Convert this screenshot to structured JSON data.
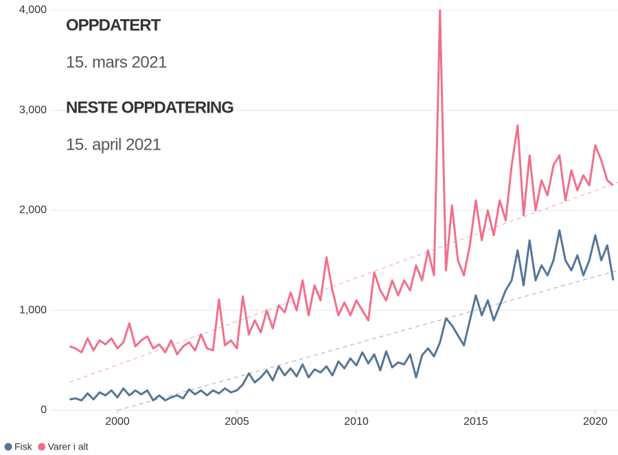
{
  "chart_data": {
    "type": "line",
    "annotations": [
      "OPPDATERT",
      "15. mars 2021",
      "NESTE OPPDATERING",
      "15. april 2021"
    ],
    "x": [
      1998,
      1998.25,
      1998.5,
      1998.75,
      1999,
      1999.25,
      1999.5,
      1999.75,
      2000,
      2000.25,
      2000.5,
      2000.75,
      2001,
      2001.25,
      2001.5,
      2001.75,
      2002,
      2002.25,
      2002.5,
      2002.75,
      2003,
      2003.25,
      2003.5,
      2003.75,
      2004,
      2004.25,
      2004.5,
      2004.75,
      2005,
      2005.25,
      2005.5,
      2005.75,
      2006,
      2006.25,
      2006.5,
      2006.75,
      2007,
      2007.25,
      2007.5,
      2007.75,
      2008,
      2008.25,
      2008.5,
      2008.75,
      2009,
      2009.25,
      2009.5,
      2009.75,
      2010,
      2010.25,
      2010.5,
      2010.75,
      2011,
      2011.25,
      2011.5,
      2011.75,
      2012,
      2012.25,
      2012.5,
      2012.75,
      2013,
      2013.25,
      2013.5,
      2013.75,
      2014,
      2014.25,
      2014.5,
      2014.75,
      2015,
      2015.25,
      2015.5,
      2015.75,
      2016,
      2016.25,
      2016.5,
      2016.75,
      2017,
      2017.25,
      2017.5,
      2017.75,
      2018,
      2018.25,
      2018.5,
      2018.75,
      2019,
      2019.25,
      2019.5,
      2019.75,
      2020,
      2020.25,
      2020.5,
      2020.75
    ],
    "series": [
      {
        "name": "Fisk",
        "color": "#557596",
        "values": [
          110,
          120,
          100,
          170,
          110,
          180,
          150,
          200,
          130,
          220,
          150,
          200,
          160,
          200,
          100,
          150,
          100,
          130,
          150,
          120,
          210,
          160,
          200,
          150,
          200,
          170,
          220,
          180,
          200,
          260,
          370,
          280,
          330,
          400,
          300,
          440,
          350,
          420,
          340,
          460,
          330,
          410,
          380,
          440,
          350,
          490,
          420,
          520,
          450,
          580,
          470,
          560,
          400,
          590,
          430,
          480,
          460,
          560,
          330,
          550,
          620,
          540,
          680,
          920,
          850,
          750,
          650,
          900,
          1150,
          950,
          1100,
          900,
          1050,
          1200,
          1300,
          1600,
          1250,
          1700,
          1300,
          1450,
          1350,
          1500,
          1800,
          1500,
          1400,
          1550,
          1350,
          1500,
          1750,
          1500,
          1650,
          1300
        ]
      },
      {
        "name": "Varer i alt",
        "color": "#f0708a",
        "values": [
          640,
          620,
          580,
          720,
          600,
          700,
          660,
          720,
          620,
          680,
          870,
          640,
          700,
          740,
          620,
          660,
          580,
          700,
          560,
          640,
          680,
          600,
          760,
          620,
          600,
          1110,
          650,
          700,
          620,
          1140,
          760,
          900,
          780,
          1000,
          820,
          1050,
          980,
          1180,
          1000,
          1300,
          950,
          1250,
          1100,
          1530,
          1200,
          950,
          1080,
          950,
          1100,
          1000,
          900,
          1380,
          1200,
          1100,
          1300,
          1150,
          1300,
          1200,
          1450,
          1300,
          1600,
          1350,
          4000,
          1400,
          2050,
          1500,
          1350,
          1650,
          2100,
          1700,
          2000,
          1750,
          2100,
          1900,
          2450,
          2850,
          1950,
          2550,
          2000,
          2300,
          2150,
          2450,
          2550,
          2100,
          2400,
          2200,
          2350,
          2250,
          2650,
          2500,
          2300,
          2250
        ]
      }
    ],
    "trendlines": [
      {
        "color": "#b9c4d3",
        "x": [
          2000,
          2020.95
        ],
        "values": [
          0,
          1400
        ]
      },
      {
        "color": "#f6bccb",
        "x": [
          1998,
          2020.95
        ],
        "values": [
          280,
          2280
        ]
      }
    ],
    "xlim": [
      1997.5,
      2020.95
    ],
    "xticks": [
      2000,
      2005,
      2010,
      2015,
      2020
    ],
    "ylim": [
      0,
      4000
    ],
    "yticks": [
      0,
      {
        "value": 1000,
        "label": "1,000"
      },
      {
        "value": 2000,
        "label": "2,000"
      },
      {
        "value": 3000,
        "label": "3,000"
      },
      {
        "value": 4000,
        "label": "4,000"
      }
    ],
    "grid": true
  }
}
